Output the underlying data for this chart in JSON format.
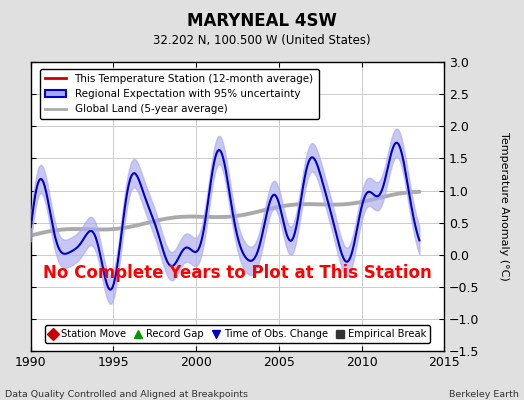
{
  "title": "MARYNEAL 4SW",
  "subtitle": "32.202 N, 100.500 W (United States)",
  "xlabel_left": "Data Quality Controlled and Aligned at Breakpoints",
  "xlabel_right": "Berkeley Earth",
  "ylabel": "Temperature Anomaly (°C)",
  "xlim": [
    1990,
    2015
  ],
  "ylim": [
    -1.5,
    3.0
  ],
  "yticks": [
    -1.5,
    -1.0,
    -0.5,
    0.0,
    0.5,
    1.0,
    1.5,
    2.0,
    2.5,
    3.0
  ],
  "xticks": [
    1990,
    1995,
    2000,
    2005,
    2010,
    2015
  ],
  "annotation": "No Complete Years to Plot at This Station",
  "annotation_color": "#ff0000",
  "bg_color": "#e0e0e0",
  "plot_bg_color": "#ffffff",
  "grid_color": "#cccccc",
  "regional_line_color": "#0000cc",
  "regional_fill_color": "#aaaaee",
  "station_line_color": "#cc0000",
  "global_line_color": "#aaaaaa",
  "legend1_entries": [
    {
      "label": "This Temperature Station (12-month average)",
      "color": "#cc0000"
    },
    {
      "label": "Regional Expectation with 95% uncertainty",
      "color": "#0000cc",
      "fill_color": "#aaaaee"
    },
    {
      "label": "Global Land (5-year average)",
      "color": "#aaaaaa"
    }
  ],
  "legend2_entries": [
    {
      "label": "Station Move",
      "marker": "D",
      "color": "#cc0000"
    },
    {
      "label": "Record Gap",
      "marker": "^",
      "color": "#009900"
    },
    {
      "label": "Time of Obs. Change",
      "marker": "v",
      "color": "#0000cc"
    },
    {
      "label": "Empirical Break",
      "marker": "s",
      "color": "#333333"
    }
  ]
}
